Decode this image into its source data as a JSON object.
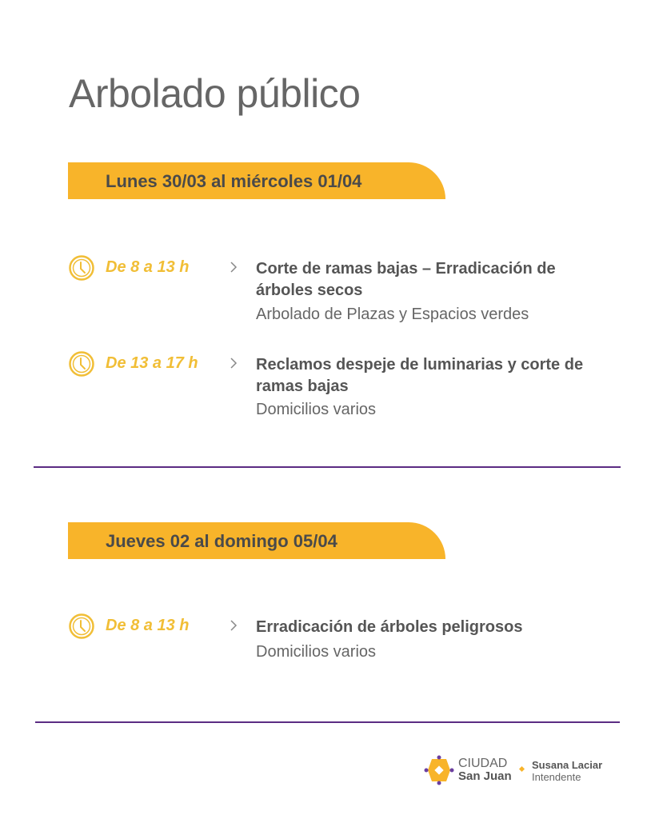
{
  "title": "Arbolado público",
  "colors": {
    "accent": "#F8B42A",
    "divider": "#5B2C83",
    "time_text": "#F1BE36"
  },
  "sections": [
    {
      "heading": "Lunes 30/03 al miércoles 01/04",
      "items": [
        {
          "icon": "clock-icon",
          "time": "De 8 a 13 h",
          "task": "Corte de ramas bajas – Erradicación de árboles secos",
          "place": "Arbolado de Plazas y Espacios verdes"
        },
        {
          "icon": "clock-icon",
          "time": "De 13 a 17 h",
          "task": "Reclamos despeje de luminarias y corte de ramas bajas",
          "place": "Domicilios varios"
        }
      ]
    },
    {
      "heading": "Jueves 02 al domingo 05/04",
      "items": [
        {
          "icon": "clock-icon",
          "time": "De 8 a 13 h",
          "task": "Erradicación de árboles peligrosos",
          "place": "Domicilios varios"
        }
      ]
    }
  ],
  "footer": {
    "brand_line1": "CIUDAD",
    "brand_line2": "San Juan",
    "name": "Susana Laciar",
    "role": "Intendente"
  }
}
